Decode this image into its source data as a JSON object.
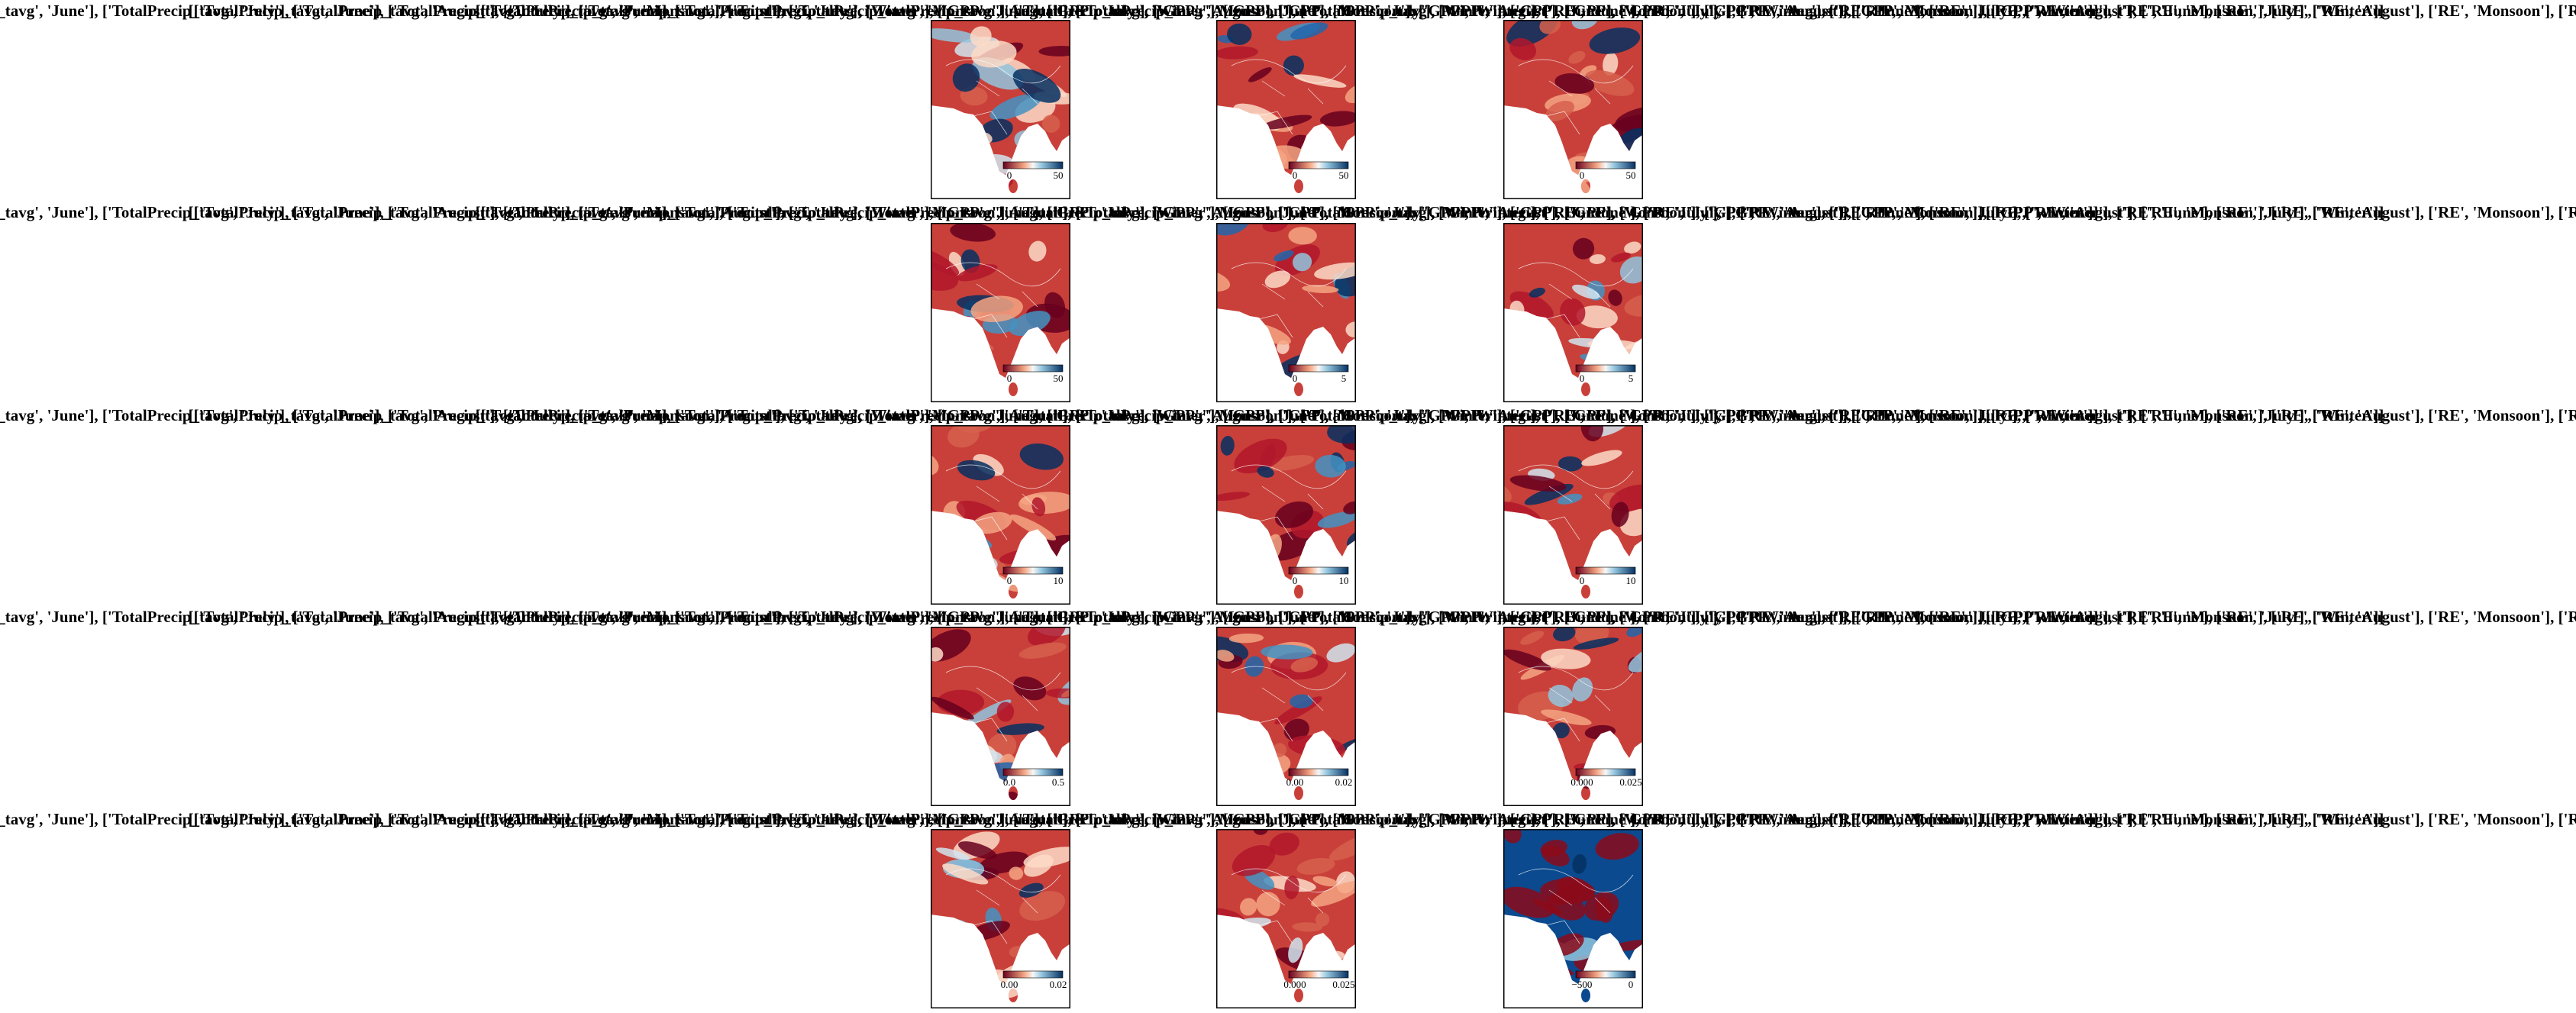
{
  "title": "[['TotalPrecip_tavg', 'June'], ['TotalPrecip_tavg', 'July'], ['TotalPrecip_tavg', 'August'], ['TotalPrecip_tavg', 'Monsoon'], ['TotalPrecip_tavg', 'Winter'], ['GPP', 'June'], ['GPP', 'July'], ['GPP', 'August'], ['GPP', 'Monsoon'], ['GPP', 'Winter'], ['RE', 'June'], ['RE', 'July'], ['RE', 'August'], ['RE', 'Monsoon'], ['RE', 'Winter']]",
  "panels": [
    [
      {
        "colorbar_labels": [
          "0",
          "50"
        ]
      },
      {
        "colorbar_labels": [
          "0",
          "50"
        ]
      },
      {
        "colorbar_labels": [
          "0",
          "50"
        ]
      }
    ],
    [
      {
        "colorbar_labels": [
          "0",
          "50"
        ]
      },
      {
        "colorbar_labels": [
          "0",
          "5"
        ]
      },
      {
        "colorbar_labels": [
          "0",
          "5"
        ]
      }
    ],
    [
      {
        "colorbar_labels": [
          "0",
          "10"
        ]
      },
      {
        "colorbar_labels": [
          "0",
          "10"
        ]
      },
      {
        "colorbar_labels": [
          "0",
          "10"
        ]
      }
    ],
    [
      {
        "colorbar_labels": [
          "0.0",
          "0.5"
        ]
      },
      {
        "colorbar_labels": [
          "0.00",
          "0.02"
        ]
      },
      {
        "colorbar_labels": [
          "0.000",
          "0.025"
        ]
      }
    ],
    [
      {
        "colorbar_labels": [
          "0.00",
          "0.02"
        ]
      },
      {
        "colorbar_labels": [
          "0.000",
          "0.025"
        ]
      },
      {
        "colorbar_labels": [
          "−500",
          "0"
        ]
      }
    ]
  ]
}
